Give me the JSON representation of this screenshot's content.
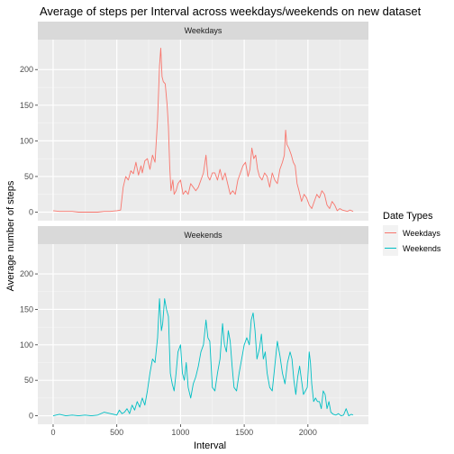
{
  "chart_data": {
    "type": "line",
    "title": "Average of steps per Interval across weekdays/weekends on new dataset",
    "xlabel": "Interval",
    "ylabel": "Average number of steps",
    "xlim": [
      -120,
      2475
    ],
    "ylim": [
      -12,
      242
    ],
    "x_ticks": [
      0,
      500,
      1000,
      1500,
      2000
    ],
    "y_ticks": [
      0,
      50,
      100,
      150,
      200
    ],
    "grid": true,
    "legend": {
      "title": "Date Types",
      "position": "right"
    },
    "panels": [
      {
        "strip": "Weekdays",
        "series": "Weekdays",
        "color": "#F8766D",
        "points": [
          [
            0,
            2
          ],
          [
            50,
            1
          ],
          [
            100,
            1
          ],
          [
            150,
            1
          ],
          [
            200,
            0
          ],
          [
            250,
            0
          ],
          [
            300,
            0
          ],
          [
            350,
            0
          ],
          [
            400,
            1
          ],
          [
            450,
            1
          ],
          [
            500,
            2
          ],
          [
            530,
            3
          ],
          [
            550,
            35
          ],
          [
            570,
            50
          ],
          [
            590,
            45
          ],
          [
            610,
            58
          ],
          [
            630,
            54
          ],
          [
            650,
            70
          ],
          [
            670,
            52
          ],
          [
            690,
            65
          ],
          [
            700,
            55
          ],
          [
            720,
            72
          ],
          [
            740,
            75
          ],
          [
            760,
            60
          ],
          [
            780,
            80
          ],
          [
            800,
            70
          ],
          [
            820,
            130
          ],
          [
            835,
            205
          ],
          [
            845,
            230
          ],
          [
            855,
            190
          ],
          [
            865,
            183
          ],
          [
            880,
            180
          ],
          [
            895,
            150
          ],
          [
            905,
            120
          ],
          [
            915,
            65
          ],
          [
            925,
            30
          ],
          [
            940,
            45
          ],
          [
            950,
            25
          ],
          [
            965,
            30
          ],
          [
            980,
            40
          ],
          [
            1000,
            45
          ],
          [
            1020,
            25
          ],
          [
            1040,
            30
          ],
          [
            1060,
            25
          ],
          [
            1080,
            40
          ],
          [
            1100,
            35
          ],
          [
            1120,
            30
          ],
          [
            1140,
            35
          ],
          [
            1160,
            45
          ],
          [
            1180,
            55
          ],
          [
            1200,
            80
          ],
          [
            1215,
            50
          ],
          [
            1230,
            45
          ],
          [
            1250,
            55
          ],
          [
            1270,
            55
          ],
          [
            1290,
            45
          ],
          [
            1310,
            60
          ],
          [
            1330,
            45
          ],
          [
            1350,
            55
          ],
          [
            1370,
            40
          ],
          [
            1390,
            25
          ],
          [
            1410,
            30
          ],
          [
            1430,
            25
          ],
          [
            1450,
            45
          ],
          [
            1470,
            55
          ],
          [
            1490,
            65
          ],
          [
            1510,
            70
          ],
          [
            1530,
            50
          ],
          [
            1545,
            60
          ],
          [
            1560,
            90
          ],
          [
            1575,
            75
          ],
          [
            1590,
            80
          ],
          [
            1605,
            60
          ],
          [
            1620,
            50
          ],
          [
            1640,
            45
          ],
          [
            1660,
            55
          ],
          [
            1680,
            50
          ],
          [
            1700,
            35
          ],
          [
            1720,
            55
          ],
          [
            1740,
            45
          ],
          [
            1760,
            40
          ],
          [
            1780,
            60
          ],
          [
            1800,
            70
          ],
          [
            1815,
            80
          ],
          [
            1825,
            115
          ],
          [
            1835,
            95
          ],
          [
            1850,
            90
          ],
          [
            1870,
            80
          ],
          [
            1885,
            70
          ],
          [
            1900,
            65
          ],
          [
            1915,
            40
          ],
          [
            1930,
            30
          ],
          [
            1950,
            15
          ],
          [
            1970,
            25
          ],
          [
            1990,
            20
          ],
          [
            2010,
            10
          ],
          [
            2030,
            5
          ],
          [
            2050,
            15
          ],
          [
            2070,
            25
          ],
          [
            2090,
            20
          ],
          [
            2110,
            30
          ],
          [
            2130,
            25
          ],
          [
            2150,
            10
          ],
          [
            2170,
            5
          ],
          [
            2190,
            15
          ],
          [
            2210,
            10
          ],
          [
            2230,
            2
          ],
          [
            2250,
            5
          ],
          [
            2270,
            3
          ],
          [
            2290,
            2
          ],
          [
            2310,
            1
          ],
          [
            2330,
            3
          ],
          [
            2355,
            1
          ]
        ]
      },
      {
        "strip": "Weekends",
        "series": "Weekends",
        "color": "#00BFC4",
        "points": [
          [
            0,
            0
          ],
          [
            50,
            2
          ],
          [
            100,
            0
          ],
          [
            150,
            1
          ],
          [
            200,
            0
          ],
          [
            250,
            1
          ],
          [
            300,
            0
          ],
          [
            350,
            1
          ],
          [
            400,
            5
          ],
          [
            450,
            3
          ],
          [
            500,
            1
          ],
          [
            520,
            8
          ],
          [
            540,
            3
          ],
          [
            560,
            5
          ],
          [
            580,
            10
          ],
          [
            600,
            3
          ],
          [
            620,
            15
          ],
          [
            640,
            8
          ],
          [
            660,
            20
          ],
          [
            680,
            12
          ],
          [
            700,
            25
          ],
          [
            720,
            15
          ],
          [
            740,
            35
          ],
          [
            760,
            60
          ],
          [
            780,
            80
          ],
          [
            800,
            75
          ],
          [
            820,
            110
          ],
          [
            835,
            165
          ],
          [
            850,
            120
          ],
          [
            860,
            130
          ],
          [
            875,
            165
          ],
          [
            890,
            150
          ],
          [
            905,
            140
          ],
          [
            920,
            60
          ],
          [
            935,
            45
          ],
          [
            950,
            35
          ],
          [
            965,
            60
          ],
          [
            980,
            90
          ],
          [
            1000,
            100
          ],
          [
            1015,
            60
          ],
          [
            1030,
            50
          ],
          [
            1045,
            75
          ],
          [
            1060,
            40
          ],
          [
            1080,
            25
          ],
          [
            1100,
            45
          ],
          [
            1120,
            55
          ],
          [
            1140,
            70
          ],
          [
            1160,
            90
          ],
          [
            1180,
            100
          ],
          [
            1200,
            135
          ],
          [
            1215,
            110
          ],
          [
            1230,
            105
          ],
          [
            1250,
            40
          ],
          [
            1270,
            35
          ],
          [
            1290,
            60
          ],
          [
            1310,
            80
          ],
          [
            1330,
            130
          ],
          [
            1345,
            100
          ],
          [
            1360,
            90
          ],
          [
            1375,
            120
          ],
          [
            1390,
            105
          ],
          [
            1405,
            70
          ],
          [
            1420,
            40
          ],
          [
            1440,
            35
          ],
          [
            1460,
            60
          ],
          [
            1480,
            80
          ],
          [
            1500,
            100
          ],
          [
            1520,
            110
          ],
          [
            1540,
            100
          ],
          [
            1555,
            135
          ],
          [
            1570,
            145
          ],
          [
            1585,
            120
          ],
          [
            1600,
            80
          ],
          [
            1620,
            95
          ],
          [
            1635,
            115
          ],
          [
            1650,
            80
          ],
          [
            1665,
            90
          ],
          [
            1680,
            60
          ],
          [
            1700,
            40
          ],
          [
            1720,
            35
          ],
          [
            1740,
            70
          ],
          [
            1760,
            105
          ],
          [
            1780,
            85
          ],
          [
            1800,
            60
          ],
          [
            1820,
            45
          ],
          [
            1840,
            75
          ],
          [
            1860,
            90
          ],
          [
            1875,
            80
          ],
          [
            1890,
            50
          ],
          [
            1905,
            30
          ],
          [
            1920,
            55
          ],
          [
            1935,
            70
          ],
          [
            1950,
            50
          ],
          [
            1965,
            30
          ],
          [
            1980,
            35
          ],
          [
            1995,
            40
          ],
          [
            2010,
            90
          ],
          [
            2020,
            75
          ],
          [
            2030,
            45
          ],
          [
            2045,
            20
          ],
          [
            2060,
            25
          ],
          [
            2075,
            20
          ],
          [
            2090,
            20
          ],
          [
            2105,
            10
          ],
          [
            2120,
            35
          ],
          [
            2135,
            30
          ],
          [
            2150,
            10
          ],
          [
            2165,
            20
          ],
          [
            2180,
            5
          ],
          [
            2200,
            2
          ],
          [
            2220,
            1
          ],
          [
            2240,
            3
          ],
          [
            2260,
            0
          ],
          [
            2280,
            1
          ],
          [
            2300,
            10
          ],
          [
            2320,
            0
          ],
          [
            2340,
            2
          ],
          [
            2355,
            1
          ]
        ]
      }
    ]
  }
}
